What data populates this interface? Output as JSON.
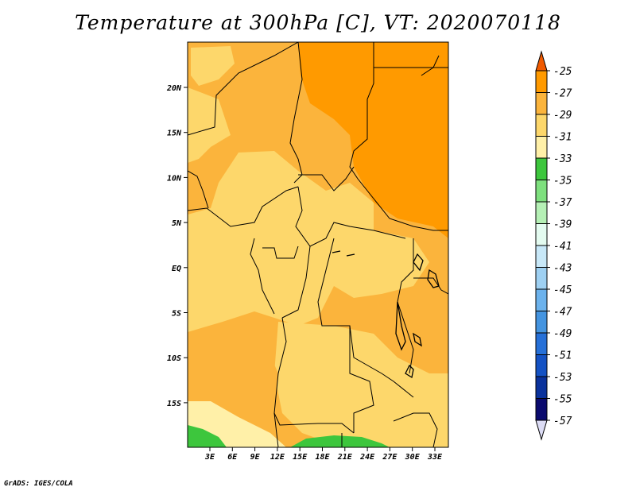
{
  "title": "Temperature at 300hPa [C], VT: 2020070118",
  "credit": "GrADS: IGES/COLA",
  "lat_labels": [
    "20N",
    "15N",
    "10N",
    "5N",
    "EQ",
    "5S",
    "10S",
    "15S"
  ],
  "lon_labels": [
    "3E",
    "6E",
    "9E",
    "12E",
    "15E",
    "18E",
    "21E",
    "24E",
    "27E",
    "30E",
    "33E"
  ],
  "colorbar": {
    "levels": [
      "-25",
      "-27",
      "-29",
      "-31",
      "-33",
      "-35",
      "-37",
      "-39",
      "-41",
      "-43",
      "-45",
      "-47",
      "-49",
      "-51",
      "-53",
      "-55",
      "-57"
    ],
    "colors": [
      "#f05a00",
      "#ff9a00",
      "#fbb43c",
      "#fdd76b",
      "#fff0a8",
      "#3dc63d",
      "#7ee07e",
      "#b5f0b5",
      "#e4fbf0",
      "#c8e8f8",
      "#9ed0f2",
      "#6cb2ec",
      "#4494e0",
      "#2670d8",
      "#1452c4",
      "#0a329c",
      "#0a0a6e",
      "#dcdcf5"
    ]
  }
}
